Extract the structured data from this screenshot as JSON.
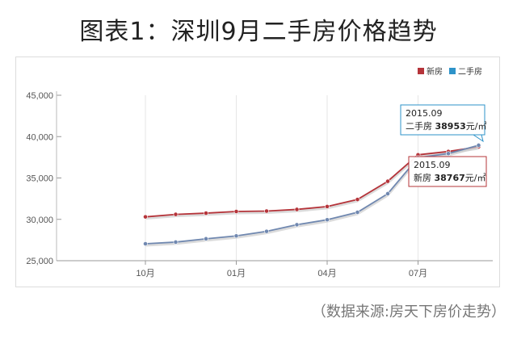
{
  "title": "图表1：深圳9月二手房价格趋势",
  "source": "（数据来源:房天下房价走势）",
  "chart_data": {
    "type": "line",
    "title": "",
    "xlabel": "",
    "ylabel": "",
    "ylim": [
      25000,
      45000
    ],
    "yticks": [
      "25,000",
      "30,000",
      "35,000",
      "40,000",
      "45,000"
    ],
    "ytick_values": [
      25000,
      30000,
      35000,
      40000,
      45000
    ],
    "xticks": [
      "10月",
      "01月",
      "04月",
      "07月"
    ],
    "xtick_index": [
      0,
      3,
      6,
      9
    ],
    "legend": {
      "position": "top-right"
    },
    "grid": "vertical",
    "series": [
      {
        "name": "新房",
        "color": "#b5343a",
        "values": [
          30300,
          30600,
          30750,
          30950,
          31000,
          31200,
          31550,
          32400,
          34600,
          37800,
          38200,
          38767
        ]
      },
      {
        "name": "二手房",
        "color": "#2e93c9",
        "line_color": "#7088b0",
        "values": [
          27050,
          27250,
          27650,
          28000,
          28550,
          29350,
          29950,
          30850,
          33100,
          37450,
          37950,
          38953
        ]
      }
    ],
    "tooltips": [
      {
        "date": "2015.09",
        "label": "二手房",
        "value": "38953",
        "unit": "元/㎡",
        "border": "#2e93c9"
      },
      {
        "date": "2015.09",
        "label": "新房",
        "value": "38767",
        "unit": "元/㎡",
        "border": "#b5343a"
      }
    ]
  }
}
